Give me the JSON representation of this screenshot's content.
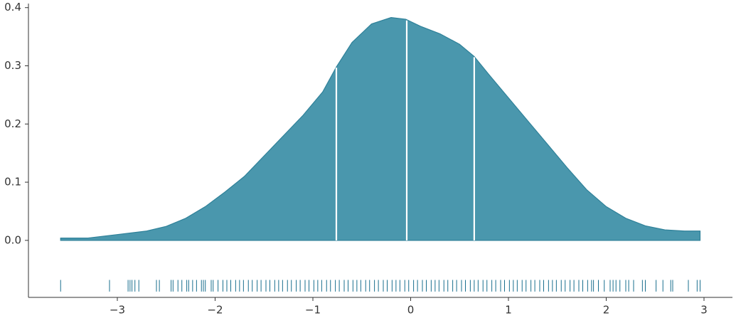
{
  "chart_data": {
    "type": "kde",
    "x": [
      -3.58,
      -3.3,
      -3.0,
      -2.7,
      -2.5,
      -2.3,
      -2.1,
      -1.9,
      -1.7,
      -1.5,
      -1.3,
      -1.1,
      -0.9,
      -0.76,
      -0.6,
      -0.4,
      -0.2,
      -0.05,
      0.1,
      0.3,
      0.5,
      0.65,
      0.8,
      1.0,
      1.2,
      1.4,
      1.6,
      1.8,
      2.0,
      2.2,
      2.4,
      2.6,
      2.8,
      2.96
    ],
    "values": [
      0.004,
      0.004,
      0.01,
      0.016,
      0.024,
      0.038,
      0.058,
      0.083,
      0.11,
      0.145,
      0.18,
      0.215,
      0.255,
      0.298,
      0.34,
      0.372,
      0.383,
      0.38,
      0.368,
      0.355,
      0.337,
      0.316,
      0.285,
      0.245,
      0.205,
      0.165,
      0.125,
      0.087,
      0.058,
      0.038,
      0.025,
      0.018,
      0.016,
      0.016
    ],
    "color": "#4a97ad",
    "edge_color": "#2f8199",
    "quartiles": [
      -0.76,
      -0.04,
      0.65
    ],
    "rug": [
      -3.58,
      -3.08,
      -2.89,
      -2.87,
      -2.85,
      -2.82,
      -2.78,
      -2.6,
      -2.57,
      -2.45,
      -2.43,
      -2.38,
      -2.34,
      -2.29,
      -2.27,
      -2.23,
      -2.19,
      -2.14,
      -2.12,
      -2.1,
      -2.04,
      -2.02,
      -1.97,
      -1.92,
      -1.88,
      -1.84,
      -1.79,
      -1.75,
      -1.71,
      -1.66,
      -1.62,
      -1.57,
      -1.53,
      -1.48,
      -1.44,
      -1.39,
      -1.35,
      -1.31,
      -1.26,
      -1.22,
      -1.17,
      -1.13,
      -1.08,
      -1.04,
      -0.99,
      -0.95,
      -0.91,
      -0.86,
      -0.82,
      -0.77,
      -0.73,
      -0.68,
      -0.64,
      -0.59,
      -0.55,
      -0.51,
      -0.46,
      -0.42,
      -0.37,
      -0.33,
      -0.28,
      -0.24,
      -0.19,
      -0.15,
      -0.11,
      -0.06,
      -0.02,
      0.03,
      0.07,
      0.12,
      0.16,
      0.21,
      0.25,
      0.29,
      0.34,
      0.38,
      0.43,
      0.47,
      0.52,
      0.56,
      0.61,
      0.65,
      0.69,
      0.74,
      0.78,
      0.83,
      0.87,
      0.92,
      0.96,
      1.01,
      1.05,
      1.09,
      1.14,
      1.18,
      1.23,
      1.27,
      1.32,
      1.36,
      1.41,
      1.45,
      1.49,
      1.54,
      1.58,
      1.63,
      1.67,
      1.72,
      1.76,
      1.81,
      1.85,
      1.87,
      1.92,
      1.98,
      2.04,
      2.07,
      2.1,
      2.14,
      2.2,
      2.23,
      2.28,
      2.37,
      2.4,
      2.51,
      2.58,
      2.66,
      2.68,
      2.84,
      2.93,
      2.96
    ],
    "rug_color": "#1a6f8e",
    "xlim": [
      -3.909,
      3.291
    ],
    "ylim": [
      -0.098,
      0.407
    ],
    "xticks": [
      {
        "value": -3,
        "label": "−3"
      },
      {
        "value": -2,
        "label": "−2"
      },
      {
        "value": -1,
        "label": "−1"
      },
      0,
      1,
      2,
      3
    ],
    "yticks": [
      {
        "value": 0,
        "label": "0.0"
      },
      0.1,
      0.2,
      0.3,
      0.4
    ]
  }
}
